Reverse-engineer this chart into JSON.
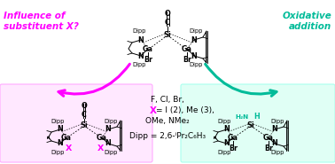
{
  "bg_color": "#ffffff",
  "magenta": "#FF00FF",
  "teal": "#00BB99",
  "left_label_line1": "Influence of",
  "left_label_line2": "substituent X?",
  "right_label_line1": "Oxidative",
  "right_label_line2": "addition",
  "left_box_color": "#FFE8FF",
  "left_box_edge": "#FFAAFF",
  "right_box_color": "#E0FFF5",
  "right_box_edge": "#AAFFEE",
  "figsize": [
    3.78,
    1.85
  ],
  "dpi": 100
}
